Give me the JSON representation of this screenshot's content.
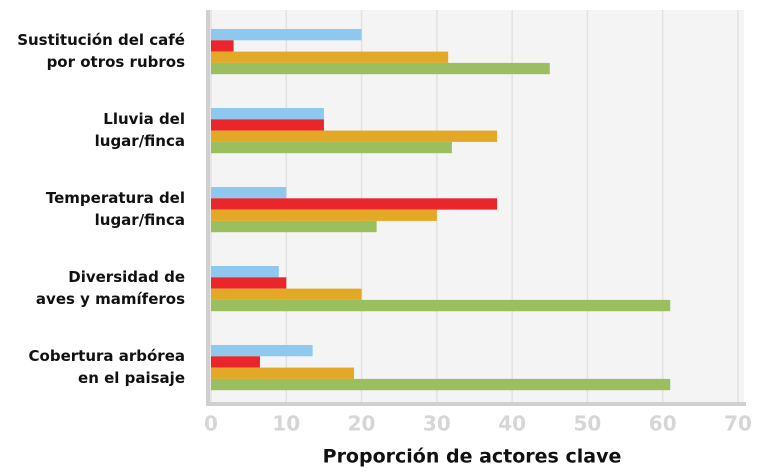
{
  "chart_data": {
    "type": "bar",
    "orientation": "horizontal",
    "x_label": "Proporción de actores clave",
    "categories": [
      [
        "Sustitución del café",
        "por otros rubros"
      ],
      [
        "Lluvia del",
        "lugar/finca"
      ],
      [
        "Temperatura del",
        "lugar/finca"
      ],
      [
        "Diversidad de",
        "aves y mamíferos"
      ],
      [
        "Cobertura arbórea",
        "en el paisaje"
      ]
    ],
    "series": [
      {
        "color": "#8ec8ee",
        "values": [
          20,
          15,
          10,
          9,
          13.5
        ]
      },
      {
        "color": "#e8262b",
        "values": [
          3,
          15,
          38,
          10,
          6.5
        ]
      },
      {
        "color": "#e3a826",
        "values": [
          31.5,
          38,
          30,
          20,
          19
        ]
      },
      {
        "color": "#9bbf5e",
        "values": [
          45,
          32,
          22,
          61,
          61
        ]
      }
    ],
    "xlim": [
      0,
      70
    ],
    "xticks": [
      0,
      10,
      20,
      30,
      40,
      50,
      60,
      70
    ],
    "grid": true
  }
}
